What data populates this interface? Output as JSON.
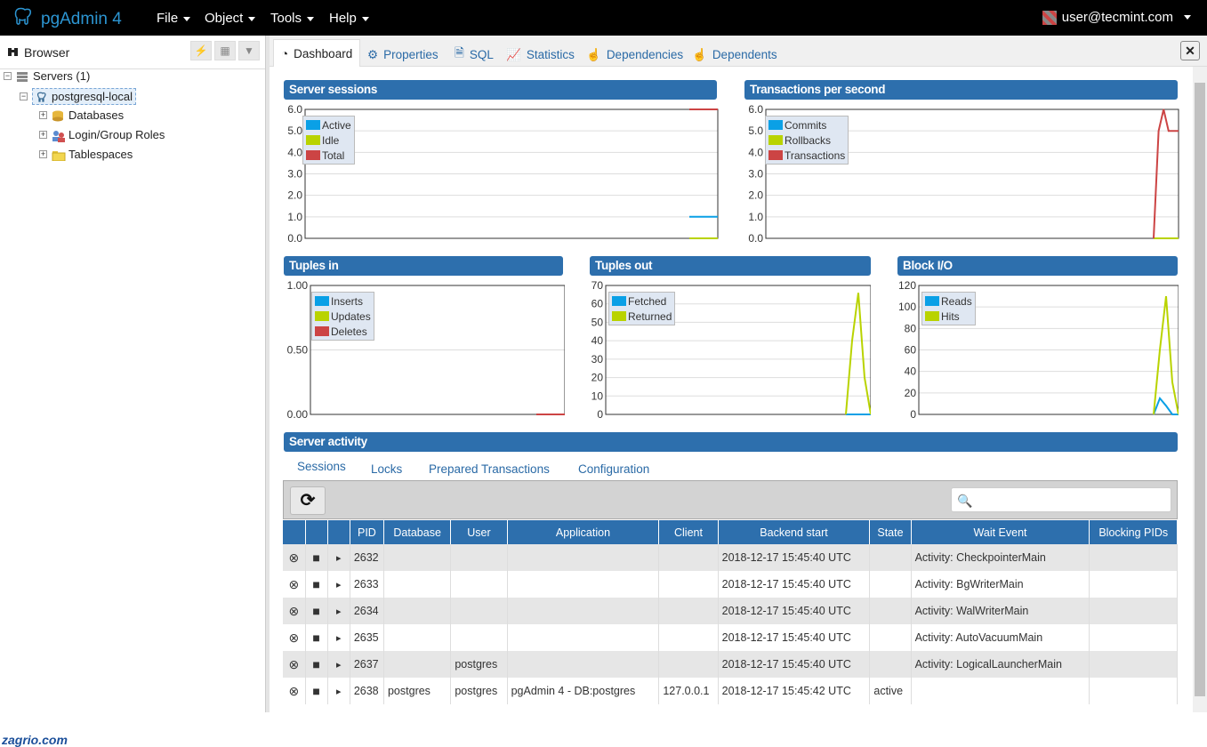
{
  "app": {
    "title": "pgAdmin 4"
  },
  "menu": [
    {
      "label": "File"
    },
    {
      "label": "Object"
    },
    {
      "label": "Tools"
    },
    {
      "label": "Help"
    }
  ],
  "user": {
    "email": "user@tecmint.com"
  },
  "browser": {
    "title": "Browser",
    "tree": [
      {
        "label": "Servers (1)"
      },
      {
        "label": "postgresql-local"
      },
      {
        "label": "Databases"
      },
      {
        "label": "Login/Group Roles"
      },
      {
        "label": "Tablespaces"
      }
    ]
  },
  "watermark": "zagrio.com",
  "tabs": [
    {
      "label": "Dashboard"
    },
    {
      "label": "Properties"
    },
    {
      "label": "SQL"
    },
    {
      "label": "Statistics"
    },
    {
      "label": "Dependencies"
    },
    {
      "label": "Dependents"
    }
  ],
  "colors": {
    "blue": "#0aa0e6",
    "green": "#b9d300",
    "red": "#cc4444",
    "header": "#2d6fad"
  },
  "chart_data": [
    {
      "type": "line",
      "title": "Server sessions",
      "ylim": [
        0,
        6
      ],
      "yticks": [
        "6.0",
        "5.0",
        "4.0",
        "3.0",
        "2.0",
        "1.0",
        "0.0"
      ],
      "x": [
        0,
        1
      ],
      "series": [
        {
          "name": "Active",
          "color": "#0aa0e6",
          "values": [
            1,
            1
          ]
        },
        {
          "name": "Idle",
          "color": "#b9d300",
          "values": [
            0,
            0
          ]
        },
        {
          "name": "Total",
          "color": "#cc4444",
          "values": [
            6,
            6
          ]
        }
      ]
    },
    {
      "type": "line",
      "title": "Transactions per second",
      "ylim": [
        0,
        6
      ],
      "yticks": [
        "6.0",
        "5.0",
        "4.0",
        "3.0",
        "2.0",
        "1.0",
        "0.0"
      ],
      "x": [
        0,
        1,
        2,
        3,
        4,
        5
      ],
      "series": [
        {
          "name": "Commits",
          "color": "#0aa0e6",
          "values": [
            0,
            0,
            0,
            0,
            0,
            0
          ]
        },
        {
          "name": "Rollbacks",
          "color": "#b9d300",
          "values": [
            0,
            0,
            0,
            0,
            0,
            0
          ]
        },
        {
          "name": "Transactions",
          "color": "#cc4444",
          "values": [
            0,
            5,
            6,
            5,
            5,
            5
          ]
        }
      ]
    },
    {
      "type": "line",
      "title": "Tuples in",
      "ylim": [
        0,
        1
      ],
      "yticks": [
        "1.00",
        "0.50",
        "0.00"
      ],
      "x": [
        0,
        1
      ],
      "series": [
        {
          "name": "Inserts",
          "color": "#0aa0e6",
          "values": [
            0,
            0
          ]
        },
        {
          "name": "Updates",
          "color": "#b9d300",
          "values": [
            0,
            0
          ]
        },
        {
          "name": "Deletes",
          "color": "#cc4444",
          "values": [
            0,
            0
          ]
        }
      ]
    },
    {
      "type": "line",
      "title": "Tuples out",
      "ylim": [
        0,
        70
      ],
      "yticks": [
        "70",
        "60",
        "50",
        "40",
        "30",
        "20",
        "10",
        "0"
      ],
      "x": [
        0,
        1,
        2,
        3,
        4
      ],
      "series": [
        {
          "name": "Fetched",
          "color": "#0aa0e6",
          "values": [
            0,
            0,
            0,
            0,
            0
          ]
        },
        {
          "name": "Returned",
          "color": "#b9d300",
          "values": [
            0,
            40,
            66,
            20,
            0
          ]
        }
      ]
    },
    {
      "type": "line",
      "title": "Block I/O",
      "ylim": [
        0,
        120
      ],
      "yticks": [
        "120",
        "100",
        "80",
        "60",
        "40",
        "20",
        "0"
      ],
      "x": [
        0,
        1,
        2,
        3,
        4
      ],
      "series": [
        {
          "name": "Reads",
          "color": "#0aa0e6",
          "values": [
            0,
            15,
            8,
            0,
            0
          ]
        },
        {
          "name": "Hits",
          "color": "#b9d300",
          "values": [
            0,
            60,
            110,
            30,
            0
          ]
        }
      ]
    }
  ],
  "activity": {
    "title": "Server activity",
    "tabs": [
      {
        "label": "Sessions"
      },
      {
        "label": "Locks"
      },
      {
        "label": "Prepared Transactions"
      },
      {
        "label": "Configuration"
      }
    ],
    "columns": [
      "PID",
      "Database",
      "User",
      "Application",
      "Client",
      "Backend start",
      "State",
      "Wait Event",
      "Blocking PIDs"
    ],
    "rows": [
      [
        "2632",
        "",
        "",
        "",
        "",
        "2018-12-17 15:45:40 UTC",
        "",
        "Activity: CheckpointerMain",
        ""
      ],
      [
        "2633",
        "",
        "",
        "",
        "",
        "2018-12-17 15:45:40 UTC",
        "",
        "Activity: BgWriterMain",
        ""
      ],
      [
        "2634",
        "",
        "",
        "",
        "",
        "2018-12-17 15:45:40 UTC",
        "",
        "Activity: WalWriterMain",
        ""
      ],
      [
        "2635",
        "",
        "",
        "",
        "",
        "2018-12-17 15:45:40 UTC",
        "",
        "Activity: AutoVacuumMain",
        ""
      ],
      [
        "2637",
        "",
        "postgres",
        "",
        "",
        "2018-12-17 15:45:40 UTC",
        "",
        "Activity: LogicalLauncherMain",
        ""
      ],
      [
        "2638",
        "postgres",
        "postgres",
        "pgAdmin 4 - DB:postgres",
        "127.0.0.1",
        "2018-12-17 15:45:42 UTC",
        "active",
        "",
        ""
      ]
    ]
  }
}
